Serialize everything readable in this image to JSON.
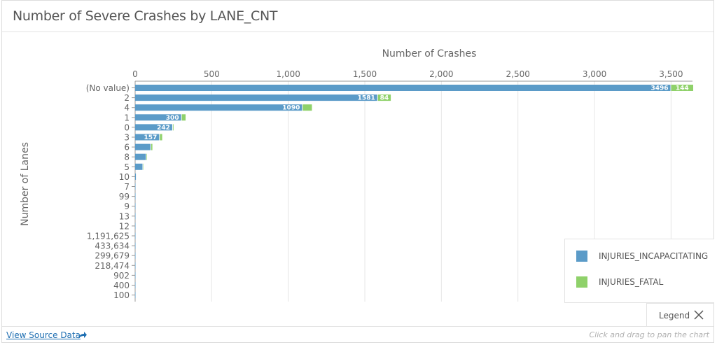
{
  "header": {
    "title": "Number of Severe Crashes by LANE_CNT"
  },
  "legend": {
    "toggle_label": "Legend",
    "items": [
      {
        "label": "INJURIES_INCAPACITATING",
        "color": "#5b9bc8"
      },
      {
        "label": "INJURIES_FATAL",
        "color": "#8fd16a"
      }
    ]
  },
  "footer": {
    "source_link": "View Source Data",
    "hint": "Click and drag to pan the chart"
  },
  "chart_data": {
    "type": "bar",
    "orientation": "horizontal",
    "stacked": true,
    "xlabel": "Number of Crashes",
    "ylabel": "Number of Lanes",
    "xlim": [
      0,
      3640
    ],
    "xticks": [
      0,
      500,
      1000,
      1500,
      2000,
      2500,
      3000,
      3500
    ],
    "xtick_labels": [
      "0",
      "500",
      "1,000",
      "1,500",
      "2,000",
      "2,500",
      "3,000",
      "3,500"
    ],
    "grid": true,
    "legend_position": "bottom-right",
    "categories": [
      "(No value)",
      "2",
      "4",
      "1",
      "0",
      "3",
      "6",
      "8",
      "5",
      "10",
      "7",
      "99",
      "9",
      "13",
      "12",
      "1,191,625",
      "433,634",
      "299,679",
      "218,474",
      "902",
      "400",
      "100"
    ],
    "series": [
      {
        "name": "INJURIES_INCAPACITATING",
        "color": "#5b9bc8",
        "values": [
          3496,
          1581,
          1090,
          300,
          242,
          157,
          100,
          70,
          48,
          5,
          2,
          1,
          1,
          1,
          1,
          1,
          1,
          1,
          1,
          1,
          1,
          1
        ]
      },
      {
        "name": "INJURIES_FATAL",
        "color": "#8fd16a",
        "values": [
          144,
          84,
          60,
          25,
          4,
          15,
          8,
          3,
          2,
          0,
          0,
          0,
          0,
          0,
          0,
          0,
          0,
          0,
          0,
          0,
          0,
          0
        ]
      }
    ],
    "data_labels": {
      "INJURIES_INCAPACITATING": [
        "3496",
        "1581",
        "1090",
        "300",
        "242",
        "157"
      ],
      "INJURIES_FATAL": [
        "144",
        "84"
      ]
    }
  }
}
